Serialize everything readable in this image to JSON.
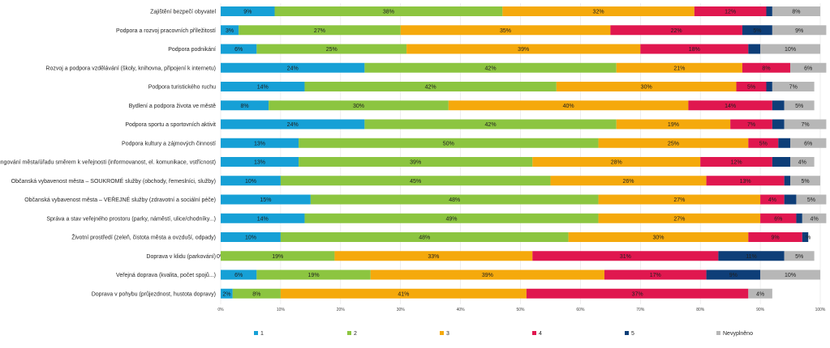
{
  "chart_data": {
    "type": "bar",
    "orientation": "horizontal",
    "stacked": true,
    "title": "",
    "xlabel": "",
    "ylabel": "",
    "xlim": [
      0,
      100
    ],
    "x_ticks": [
      "0%",
      "10%",
      "20%",
      "30%",
      "40%",
      "50%",
      "60%",
      "70%",
      "80%",
      "90%",
      "100%"
    ],
    "legend_position": "bottom",
    "categories": [
      "Zajištění bezpečí obyvatel",
      "Podpora a rozvoj pracovních příležitostí",
      "Podpora podnikání",
      "Rozvoj a podpora vzdělávání (školy, knihovna, připojení k internetu)",
      "Podpora turistického ruchu",
      "Bydlení a podpora života ve městě",
      "Podpora sportu a sportovních aktivit",
      "Podpora kultury a zájmových činností",
      "Fungování města/úřadu směrem k veřejnosti (informovanost, el. komunikace, vstřícnost)",
      "Občanská vybavenost města – SOUKROMÉ služby (obchody, řemeslníci, služby)",
      "Občanská vybavenost města – VEŘEJNÉ služby (zdravotní a sociální péče)",
      "Správa a stav veřejného prostoru (parky, náměstí, ulice/chodníky...)",
      "Životní prostředí (zeleň, čistota města a ovzduší, odpady)",
      "Doprava v klidu (parkování)",
      "Veřejná doprava (kvalita, počet spojů...)",
      "Doprava v pohybu (průjezdnost, hustota dopravy)"
    ],
    "series": [
      {
        "name": "1",
        "color": "#16a0d6",
        "values": [
          9,
          3,
          6,
          24,
          14,
          8,
          24,
          13,
          13,
          10,
          15,
          14,
          10,
          0,
          6,
          2
        ]
      },
      {
        "name": "2",
        "color": "#8cc540",
        "values": [
          38,
          27,
          25,
          42,
          42,
          30,
          42,
          50,
          39,
          45,
          48,
          49,
          48,
          19,
          19,
          8
        ]
      },
      {
        "name": "3",
        "color": "#f5a90c",
        "values": [
          32,
          35,
          39,
          21,
          30,
          40,
          19,
          25,
          28,
          26,
          27,
          27,
          30,
          33,
          39,
          41
        ]
      },
      {
        "name": "4",
        "color": "#e0174f",
        "values": [
          12,
          22,
          18,
          8,
          5,
          14,
          7,
          5,
          12,
          13,
          4,
          6,
          9,
          31,
          17,
          37
        ]
      },
      {
        "name": "5",
        "color": "#0e3e78",
        "values": [
          1,
          5,
          2,
          0,
          1,
          2,
          2,
          2,
          3,
          1,
          2,
          1,
          1,
          11,
          9,
          0
        ]
      },
      {
        "name": "Nevyplněno",
        "color": "#b7b7b7",
        "values": [
          8,
          9,
          10,
          6,
          7,
          5,
          7,
          6,
          4,
          5,
          5,
          4,
          0,
          5,
          10,
          4
        ]
      }
    ],
    "labels": [
      [
        "9%",
        "38%",
        "32%",
        "12%",
        "",
        "8%"
      ],
      [
        "3%",
        "27%",
        "35%",
        "22%",
        "5%",
        "9%"
      ],
      [
        "6%",
        "25%",
        "39%",
        "18%",
        "",
        "10%"
      ],
      [
        "24%",
        "42%",
        "21%",
        "8%",
        "",
        "6%"
      ],
      [
        "14%",
        "42%",
        "30%",
        "5%",
        "",
        "7%"
      ],
      [
        "8%",
        "30%",
        "40%",
        "14%",
        "",
        "5%"
      ],
      [
        "24%",
        "42%",
        "19%",
        "7%",
        "",
        "7%"
      ],
      [
        "13%",
        "50%",
        "25%",
        "5%",
        "",
        "6%"
      ],
      [
        "13%",
        "39%",
        "28%",
        "12%",
        "",
        "4%"
      ],
      [
        "10%",
        "45%",
        "26%",
        "13%",
        "",
        "5%"
      ],
      [
        "15%",
        "48%",
        "27%",
        "4%",
        "",
        "5%"
      ],
      [
        "14%",
        "49%",
        "27%",
        "6%",
        "",
        "4%"
      ],
      [
        "10%",
        "48%",
        "30%",
        "9%",
        "",
        "%"
      ],
      [
        "0%",
        "19%",
        "33%",
        "31%",
        "11%",
        "5%"
      ],
      [
        "6%",
        "19%",
        "39%",
        "17%",
        "9%",
        "10%"
      ],
      [
        "2%",
        "8%",
        "41%",
        "37%",
        "",
        "4%"
      ]
    ]
  }
}
